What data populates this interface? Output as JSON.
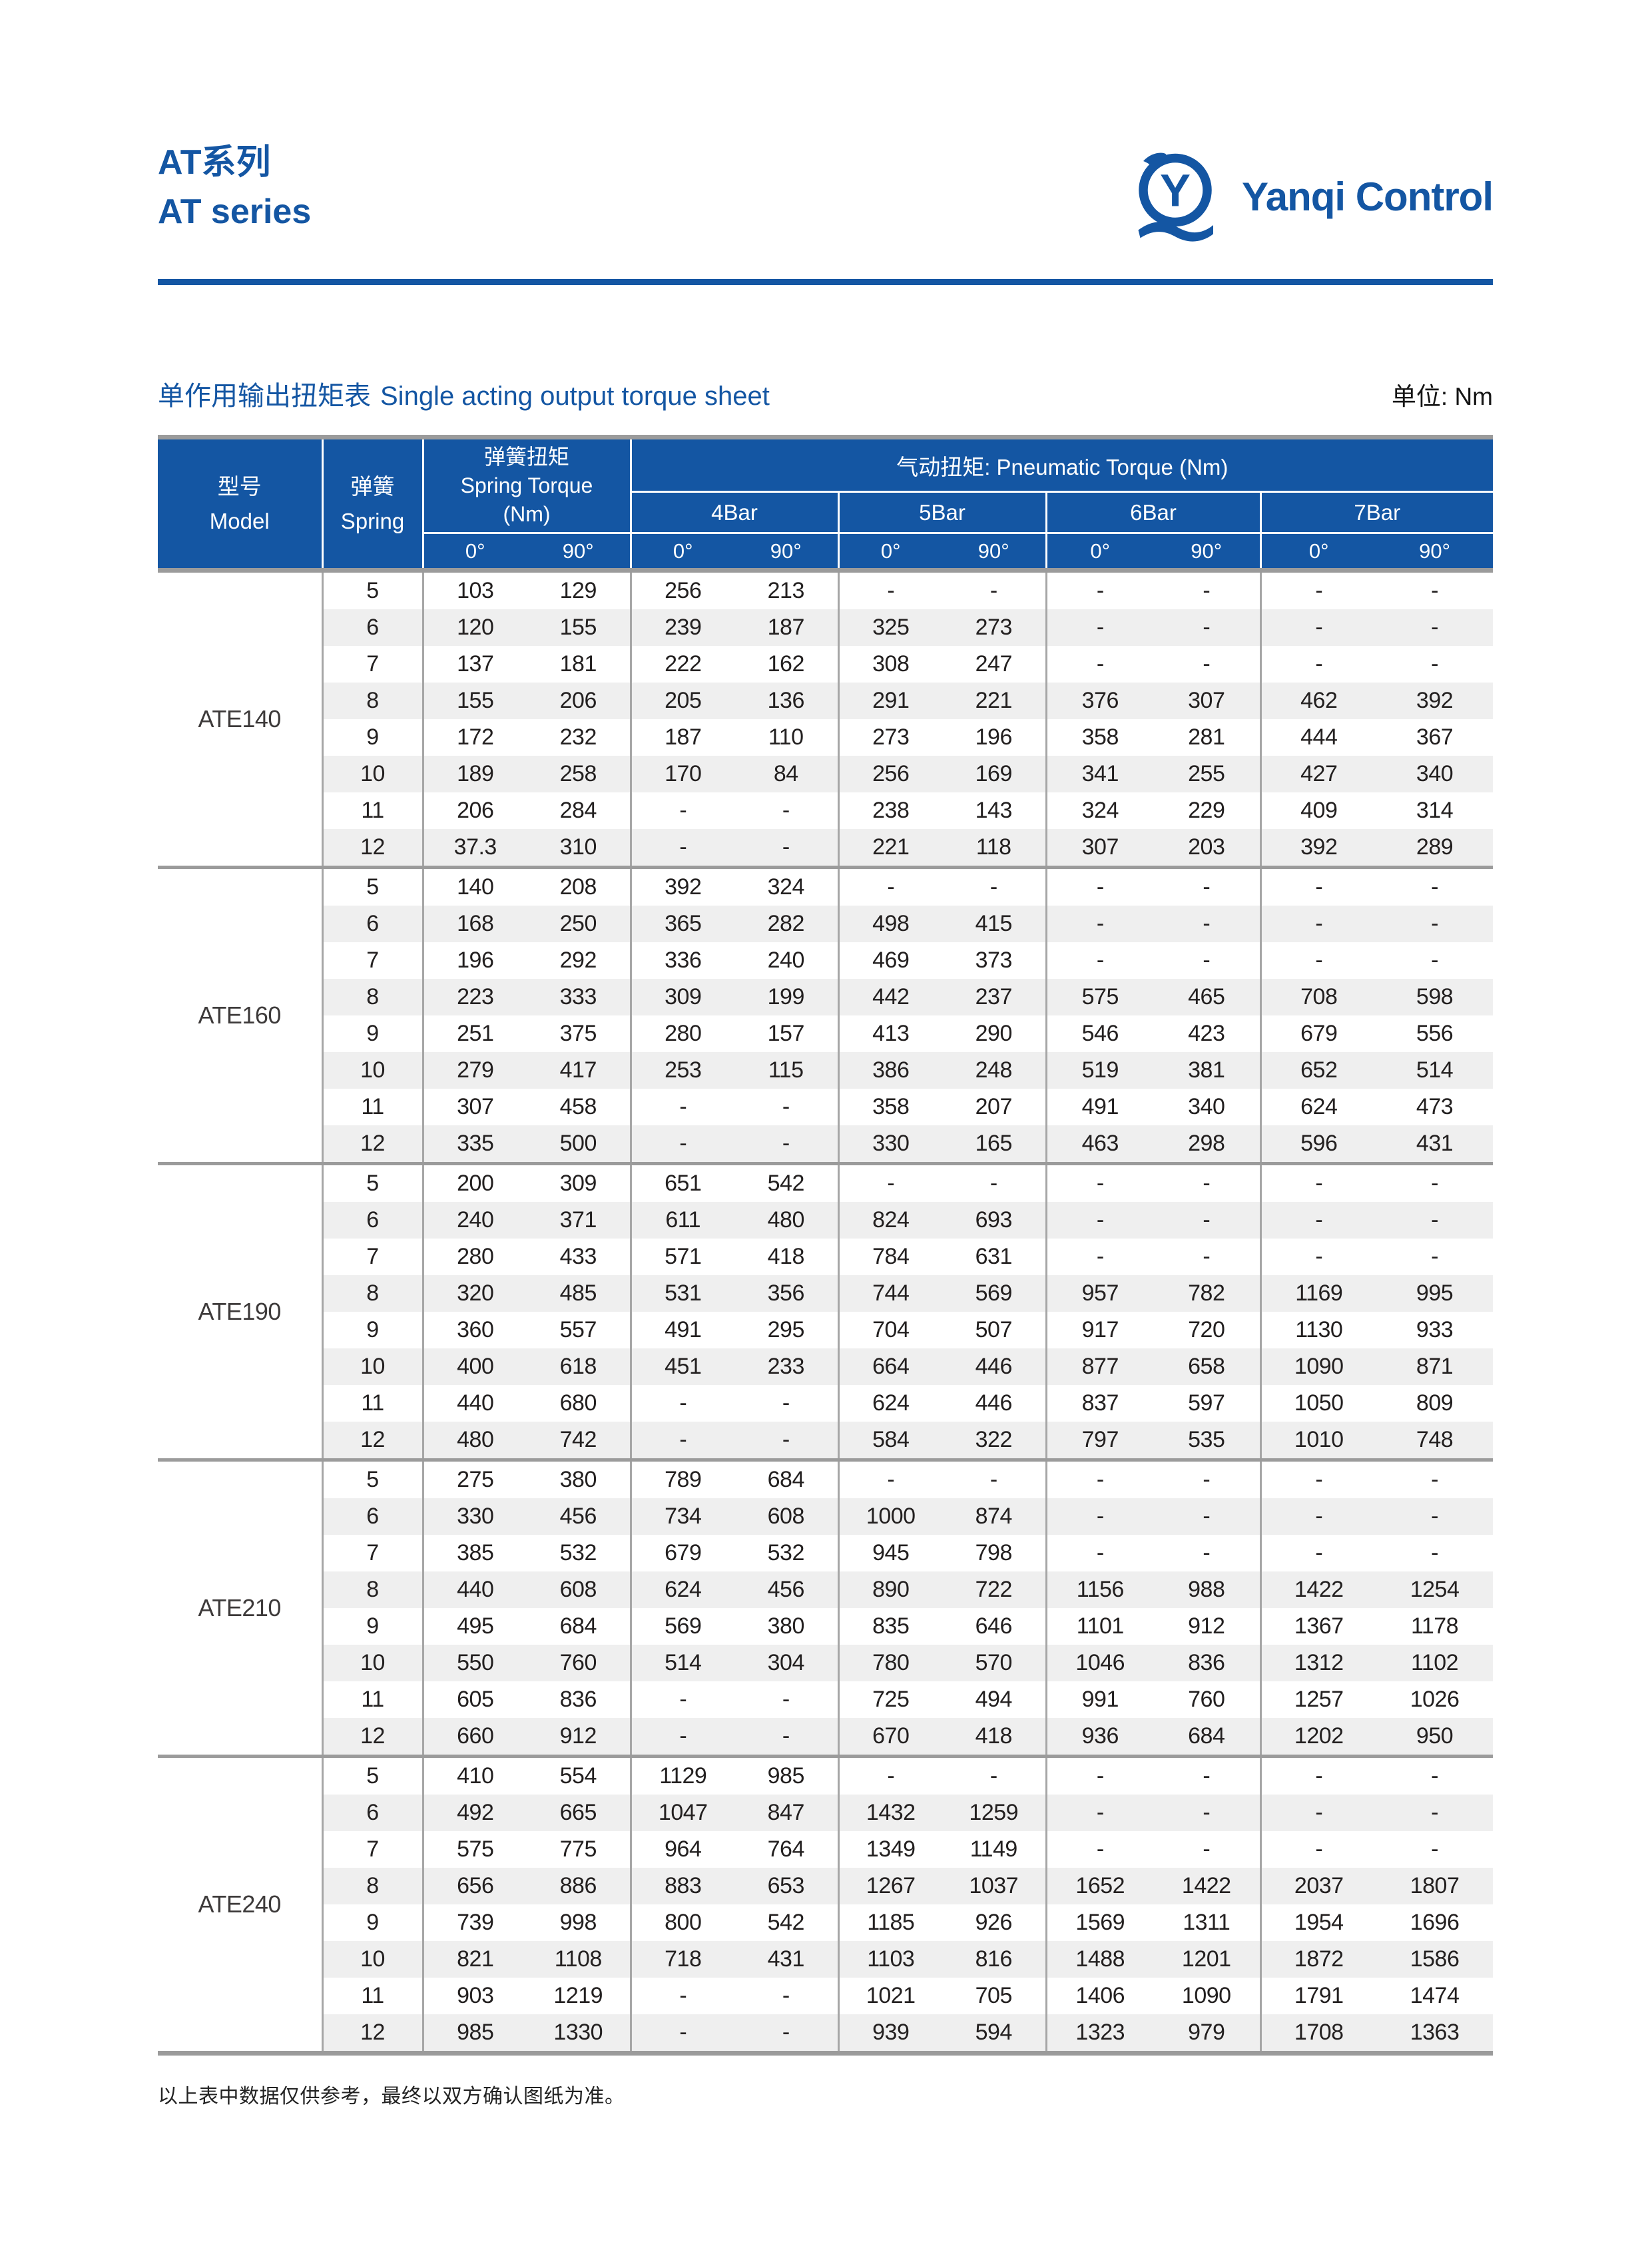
{
  "brand": {
    "series_cn": "AT系列",
    "series_en": "AT series",
    "name": "Yanqi Control",
    "logo_letter": "Y",
    "primary_blue": "#1456a3"
  },
  "title": {
    "cn": "单作用输出扭矩表",
    "en": "Single acting output torque sheet",
    "unit": "单位: Nm"
  },
  "table": {
    "headers": {
      "model_cn": "型号",
      "model_en": "Model",
      "spring_cn": "弹簧",
      "spring_en": "Spring",
      "spring_torque_cn": "弹簧扭矩",
      "spring_torque_en": "Spring Torque",
      "spring_torque_unit": "(Nm)",
      "pneumatic": "气动扭矩: Pneumatic Torque (Nm)",
      "bars": [
        "4Bar",
        "5Bar",
        "6Bar",
        "7Bar"
      ],
      "deg0": "0°",
      "deg90": "90°"
    },
    "models": [
      {
        "name": "ATE140",
        "rows": [
          {
            "spring": "5",
            "values": [
              "103",
              "129",
              "256",
              "213",
              "-",
              "-",
              "-",
              "-",
              "-",
              "-"
            ]
          },
          {
            "spring": "6",
            "values": [
              "120",
              "155",
              "239",
              "187",
              "325",
              "273",
              "-",
              "-",
              "-",
              "-"
            ]
          },
          {
            "spring": "7",
            "values": [
              "137",
              "181",
              "222",
              "162",
              "308",
              "247",
              "-",
              "-",
              "-",
              "-"
            ]
          },
          {
            "spring": "8",
            "values": [
              "155",
              "206",
              "205",
              "136",
              "291",
              "221",
              "376",
              "307",
              "462",
              "392"
            ]
          },
          {
            "spring": "9",
            "values": [
              "172",
              "232",
              "187",
              "110",
              "273",
              "196",
              "358",
              "281",
              "444",
              "367"
            ]
          },
          {
            "spring": "10",
            "values": [
              "189",
              "258",
              "170",
              "84",
              "256",
              "169",
              "341",
              "255",
              "427",
              "340"
            ]
          },
          {
            "spring": "11",
            "values": [
              "206",
              "284",
              "-",
              "-",
              "238",
              "143",
              "324",
              "229",
              "409",
              "314"
            ]
          },
          {
            "spring": "12",
            "values": [
              "37.3",
              "310",
              "-",
              "-",
              "221",
              "118",
              "307",
              "203",
              "392",
              "289"
            ]
          }
        ]
      },
      {
        "name": "ATE160",
        "rows": [
          {
            "spring": "5",
            "values": [
              "140",
              "208",
              "392",
              "324",
              "-",
              "-",
              "-",
              "-",
              "-",
              "-"
            ]
          },
          {
            "spring": "6",
            "values": [
              "168",
              "250",
              "365",
              "282",
              "498",
              "415",
              "-",
              "-",
              "-",
              "-"
            ]
          },
          {
            "spring": "7",
            "values": [
              "196",
              "292",
              "336",
              "240",
              "469",
              "373",
              "-",
              "-",
              "-",
              "-"
            ]
          },
          {
            "spring": "8",
            "values": [
              "223",
              "333",
              "309",
              "199",
              "442",
              "237",
              "575",
              "465",
              "708",
              "598"
            ]
          },
          {
            "spring": "9",
            "values": [
              "251",
              "375",
              "280",
              "157",
              "413",
              "290",
              "546",
              "423",
              "679",
              "556"
            ]
          },
          {
            "spring": "10",
            "values": [
              "279",
              "417",
              "253",
              "115",
              "386",
              "248",
              "519",
              "381",
              "652",
              "514"
            ]
          },
          {
            "spring": "11",
            "values": [
              "307",
              "458",
              "-",
              "-",
              "358",
              "207",
              "491",
              "340",
              "624",
              "473"
            ]
          },
          {
            "spring": "12",
            "values": [
              "335",
              "500",
              "-",
              "-",
              "330",
              "165",
              "463",
              "298",
              "596",
              "431"
            ]
          }
        ]
      },
      {
        "name": "ATE190",
        "rows": [
          {
            "spring": "5",
            "values": [
              "200",
              "309",
              "651",
              "542",
              "-",
              "-",
              "-",
              "-",
              "-",
              "-"
            ]
          },
          {
            "spring": "6",
            "values": [
              "240",
              "371",
              "611",
              "480",
              "824",
              "693",
              "-",
              "-",
              "-",
              "-"
            ]
          },
          {
            "spring": "7",
            "values": [
              "280",
              "433",
              "571",
              "418",
              "784",
              "631",
              "-",
              "-",
              "-",
              "-"
            ]
          },
          {
            "spring": "8",
            "values": [
              "320",
              "485",
              "531",
              "356",
              "744",
              "569",
              "957",
              "782",
              "1169",
              "995"
            ]
          },
          {
            "spring": "9",
            "values": [
              "360",
              "557",
              "491",
              "295",
              "704",
              "507",
              "917",
              "720",
              "1130",
              "933"
            ]
          },
          {
            "spring": "10",
            "values": [
              "400",
              "618",
              "451",
              "233",
              "664",
              "446",
              "877",
              "658",
              "1090",
              "871"
            ]
          },
          {
            "spring": "11",
            "values": [
              "440",
              "680",
              "-",
              "-",
              "624",
              "446",
              "837",
              "597",
              "1050",
              "809"
            ]
          },
          {
            "spring": "12",
            "values": [
              "480",
              "742",
              "-",
              "-",
              "584",
              "322",
              "797",
              "535",
              "1010",
              "748"
            ]
          }
        ]
      },
      {
        "name": "ATE210",
        "rows": [
          {
            "spring": "5",
            "values": [
              "275",
              "380",
              "789",
              "684",
              "-",
              "-",
              "-",
              "-",
              "-",
              "-"
            ]
          },
          {
            "spring": "6",
            "values": [
              "330",
              "456",
              "734",
              "608",
              "1000",
              "874",
              "-",
              "-",
              "-",
              "-"
            ]
          },
          {
            "spring": "7",
            "values": [
              "385",
              "532",
              "679",
              "532",
              "945",
              "798",
              "-",
              "-",
              "-",
              "-"
            ]
          },
          {
            "spring": "8",
            "values": [
              "440",
              "608",
              "624",
              "456",
              "890",
              "722",
              "1156",
              "988",
              "1422",
              "1254"
            ]
          },
          {
            "spring": "9",
            "values": [
              "495",
              "684",
              "569",
              "380",
              "835",
              "646",
              "1101",
              "912",
              "1367",
              "1178"
            ]
          },
          {
            "spring": "10",
            "values": [
              "550",
              "760",
              "514",
              "304",
              "780",
              "570",
              "1046",
              "836",
              "1312",
              "1102"
            ]
          },
          {
            "spring": "11",
            "values": [
              "605",
              "836",
              "-",
              "-",
              "725",
              "494",
              "991",
              "760",
              "1257",
              "1026"
            ]
          },
          {
            "spring": "12",
            "values": [
              "660",
              "912",
              "-",
              "-",
              "670",
              "418",
              "936",
              "684",
              "1202",
              "950"
            ]
          }
        ]
      },
      {
        "name": "ATE240",
        "rows": [
          {
            "spring": "5",
            "values": [
              "410",
              "554",
              "1129",
              "985",
              "-",
              "-",
              "-",
              "-",
              "-",
              "-"
            ]
          },
          {
            "spring": "6",
            "values": [
              "492",
              "665",
              "1047",
              "847",
              "1432",
              "1259",
              "-",
              "-",
              "-",
              "-"
            ]
          },
          {
            "spring": "7",
            "values": [
              "575",
              "775",
              "964",
              "764",
              "1349",
              "1149",
              "-",
              "-",
              "-",
              "-"
            ]
          },
          {
            "spring": "8",
            "values": [
              "656",
              "886",
              "883",
              "653",
              "1267",
              "1037",
              "1652",
              "1422",
              "2037",
              "1807"
            ]
          },
          {
            "spring": "9",
            "values": [
              "739",
              "998",
              "800",
              "542",
              "1185",
              "926",
              "1569",
              "1311",
              "1954",
              "1696"
            ]
          },
          {
            "spring": "10",
            "values": [
              "821",
              "1108",
              "718",
              "431",
              "1103",
              "816",
              "1488",
              "1201",
              "1872",
              "1586"
            ]
          },
          {
            "spring": "11",
            "values": [
              "903",
              "1219",
              "-",
              "-",
              "1021",
              "705",
              "1406",
              "1090",
              "1791",
              "1474"
            ]
          },
          {
            "spring": "12",
            "values": [
              "985",
              "1330",
              "-",
              "-",
              "939",
              "594",
              "1323",
              "979",
              "1708",
              "1363"
            ]
          }
        ]
      }
    ]
  },
  "footnote": "以上表中数据仅供参考，最终以双方确认图纸为准。",
  "colors": {
    "primary_blue": "#1456a3",
    "stripe_gray": "#efefef",
    "border_gray": "#9b9b9b",
    "column_line_gray": "#a6a6a6",
    "text_dark": "#232020"
  }
}
